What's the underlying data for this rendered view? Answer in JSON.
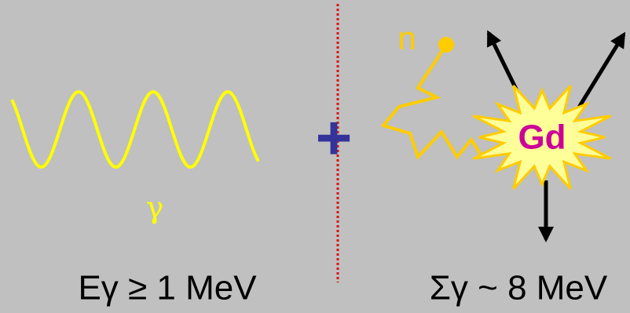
{
  "labels": {
    "gamma": "γ",
    "plus": "+",
    "neutron": "n",
    "gadolinium": "Gd",
    "left_caption": "Eγ ≥ 1 MeV",
    "right_caption": "Σγ ~ 8 MeV"
  }
}
